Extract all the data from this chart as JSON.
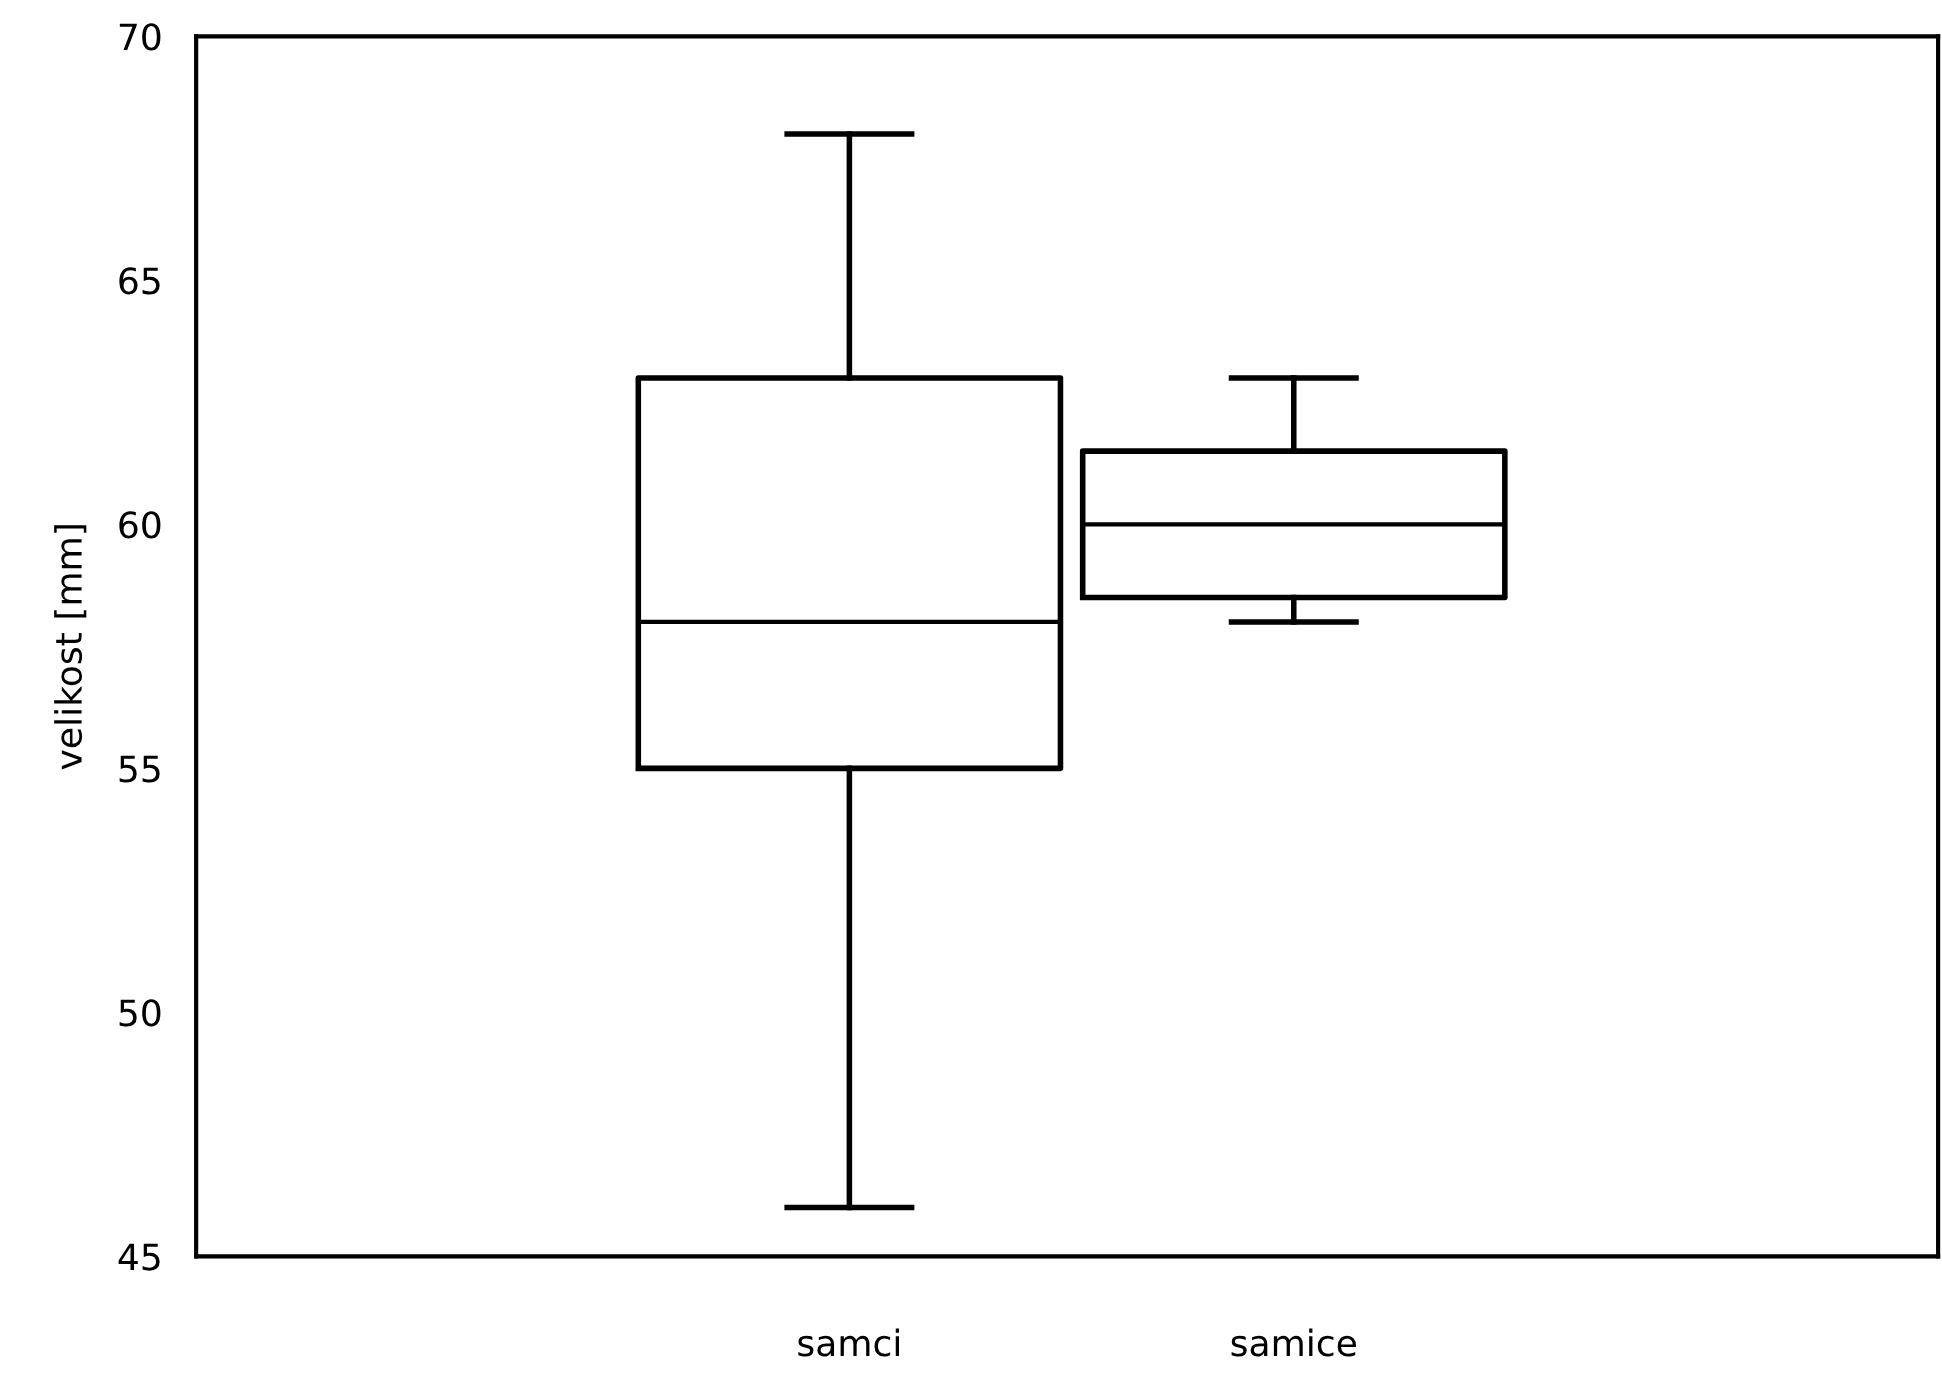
{
  "chart_data": {
    "type": "box",
    "ylabel": "velikost [mm]",
    "categories": [
      "samci",
      "samice"
    ],
    "boxes": [
      {
        "low": 46,
        "q1": 55,
        "median": 58,
        "q3": 63,
        "high": 68
      },
      {
        "low": 58,
        "q1": 58.5,
        "median": 60,
        "q3": 61.5,
        "high": 63
      }
    ],
    "ylim": [
      45,
      70
    ],
    "yticks": [
      45,
      50,
      55,
      60,
      65,
      70
    ],
    "grid": false
  }
}
